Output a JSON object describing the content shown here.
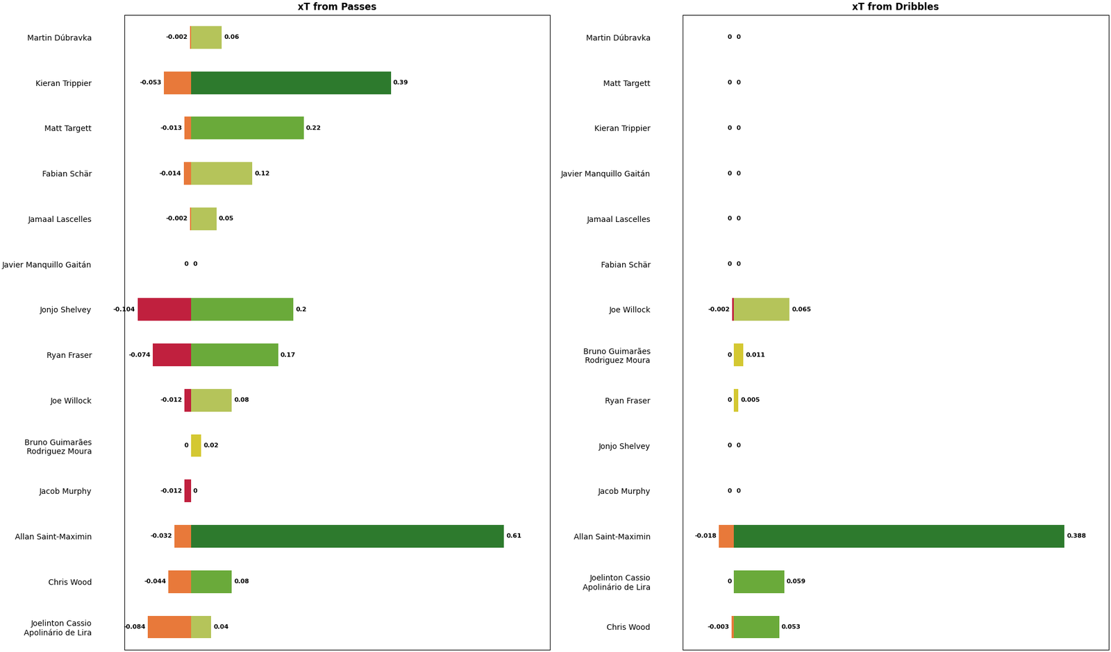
{
  "chart_data": [
    {
      "type": "bar",
      "orientation": "horizontal",
      "title": "xT from Passes",
      "categories": [
        "Martin Dúbravka",
        "Kieran Trippier",
        "Matt Targett",
        "Fabian Schär",
        "Jamaal Lascelles",
        "Javier Manquillo Gaitán",
        "Jonjo Shelvey",
        "Ryan Fraser",
        "Joe Willock",
        "Bruno Guimarães\nRodriguez Moura",
        "Jacob Murphy",
        "Allan Saint-Maximin",
        "Chris Wood",
        "Joelinton Cassio\nApolinário de Lira"
      ],
      "series": [
        {
          "values": [
            -0.002,
            -0.053,
            -0.013,
            -0.014,
            -0.002,
            0,
            -0.104,
            -0.074,
            -0.012,
            0,
            -0.012,
            -0.032,
            -0.044,
            -0.084
          ],
          "colors": [
            "#e8793a",
            "#e8793a",
            "#e8793a",
            "#e8793a",
            "#e8793a",
            "#e8793a",
            "#c0203e",
            "#c0203e",
            "#c0203e",
            "#c0203e",
            "#c0203e",
            "#e8793a",
            "#e8793a",
            "#e8793a"
          ]
        },
        {
          "values": [
            0.06,
            0.39,
            0.22,
            0.12,
            0.05,
            0,
            0.2,
            0.17,
            0.08,
            0.02,
            0,
            0.61,
            0.08,
            0.04
          ],
          "colors": [
            "#b5c45a",
            "#2d7a2d",
            "#6aaa3a",
            "#b5c45a",
            "#b5c45a",
            "#d4c832",
            "#6aaa3a",
            "#6aaa3a",
            "#b5c45a",
            "#d4c832",
            "#d4c832",
            "#2d7a2d",
            "#6aaa3a",
            "#b5c45a"
          ]
        }
      ],
      "xlim": [
        -0.13,
        0.7
      ],
      "data_labels": true,
      "tick_labels": "y",
      "grid": false
    },
    {
      "type": "bar",
      "orientation": "horizontal",
      "title": "xT from Dribbles",
      "categories": [
        "Martin Dúbravka",
        "Matt Targett",
        "Kieran Trippier",
        "Javier Manquillo Gaitán",
        "Jamaal Lascelles",
        "Fabian Schär",
        "Joe Willock",
        "Bruno Guimarães\nRodriguez Moura",
        "Ryan Fraser",
        "Jonjo Shelvey",
        "Jacob Murphy",
        "Allan Saint-Maximin",
        "Joelinton Cassio\nApolinário de Lira",
        "Chris Wood"
      ],
      "series": [
        {
          "values": [
            0,
            0,
            0,
            0,
            0,
            0,
            -0.002,
            0,
            0,
            0,
            0,
            -0.018,
            0,
            -0.003
          ],
          "colors": [
            "#e8793a",
            "#e8793a",
            "#e8793a",
            "#e8793a",
            "#e8793a",
            "#e8793a",
            "#c0203e",
            "#c0203e",
            "#c0203e",
            "#c0203e",
            "#c0203e",
            "#e8793a",
            "#e8793a",
            "#e8793a"
          ]
        },
        {
          "values": [
            0,
            0,
            0,
            0,
            0,
            0,
            0.065,
            0.011,
            0.005,
            0,
            0,
            0.388,
            0.059,
            0.053
          ],
          "colors": [
            "#d4c832",
            "#d4c832",
            "#d4c832",
            "#d4c832",
            "#d4c832",
            "#d4c832",
            "#b5c45a",
            "#d4c832",
            "#d4c832",
            "#d4c832",
            "#d4c832",
            "#2d7a2d",
            "#6aaa3a",
            "#6aaa3a"
          ]
        }
      ],
      "xlim": [
        -0.06,
        0.44
      ],
      "data_labels": true,
      "tick_labels": "y",
      "grid": false
    }
  ]
}
